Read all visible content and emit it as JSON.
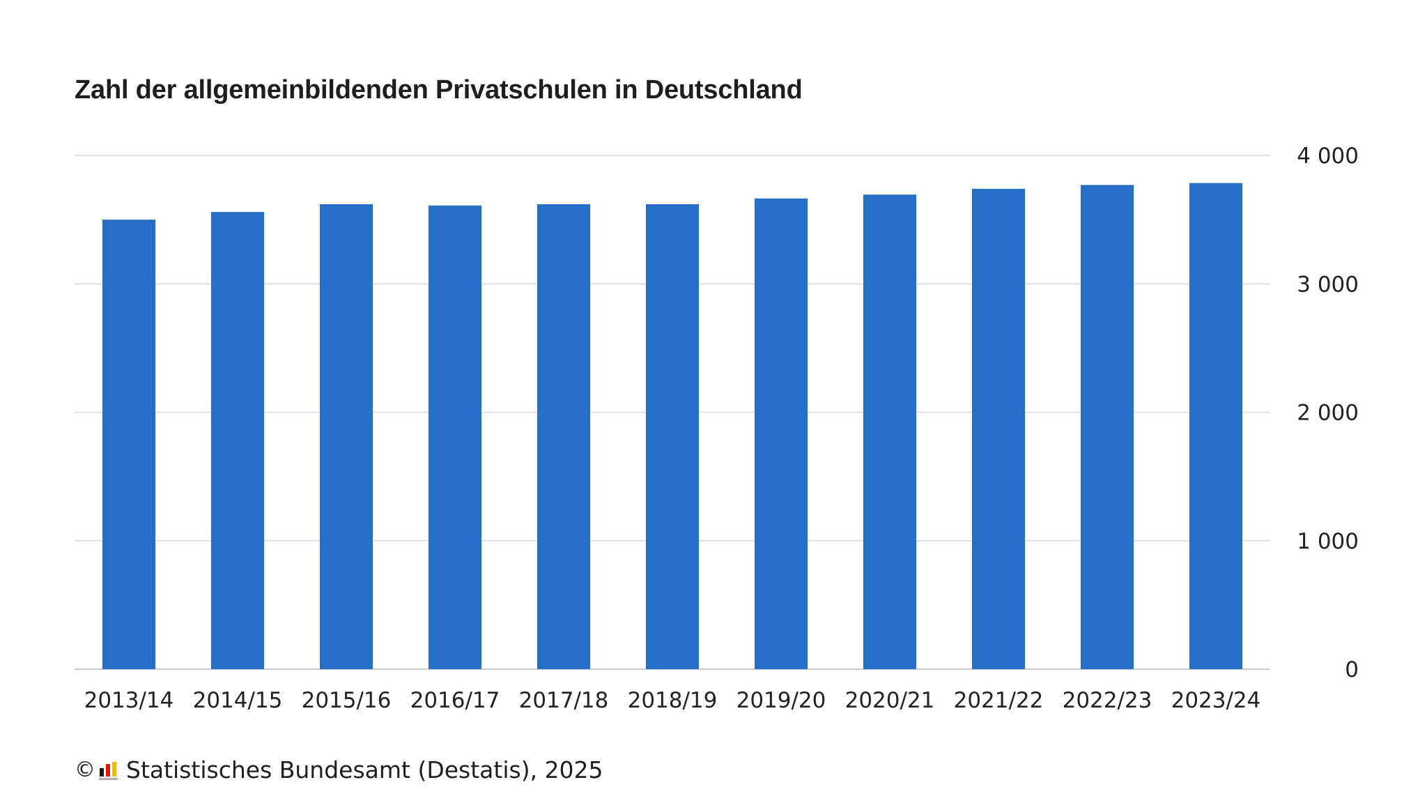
{
  "header": {
    "title": "Zahl der allgemeinbildenden Privatschulen in Deutschland"
  },
  "footer": {
    "copyright_symbol": "©",
    "source": "Statistisches Bundesamt (Destatis), 2025"
  },
  "colors": {
    "bar": "#276EC7",
    "grid": "#d9d9d9",
    "baseline": "#bdbdbd"
  },
  "chart_data": {
    "type": "bar",
    "title": "Zahl der allgemeinbildenden Privatschulen in Deutschland",
    "xlabel": "",
    "ylabel": "",
    "categories": [
      "2013/14",
      "2014/15",
      "2015/16",
      "2016/17",
      "2017/18",
      "2018/19",
      "2019/20",
      "2020/21",
      "2021/22",
      "2022/23",
      "2023/24"
    ],
    "values": [
      3500,
      3560,
      3620,
      3610,
      3620,
      3620,
      3665,
      3695,
      3740,
      3770,
      3785
    ],
    "ylim": [
      0,
      4000
    ],
    "yticks": [
      0,
      1000,
      2000,
      3000,
      4000
    ],
    "ytick_labels": [
      "0",
      "1 000",
      "2 000",
      "3 000",
      "4 000"
    ],
    "y_axis_side": "right",
    "grid": true,
    "legend": "none"
  }
}
